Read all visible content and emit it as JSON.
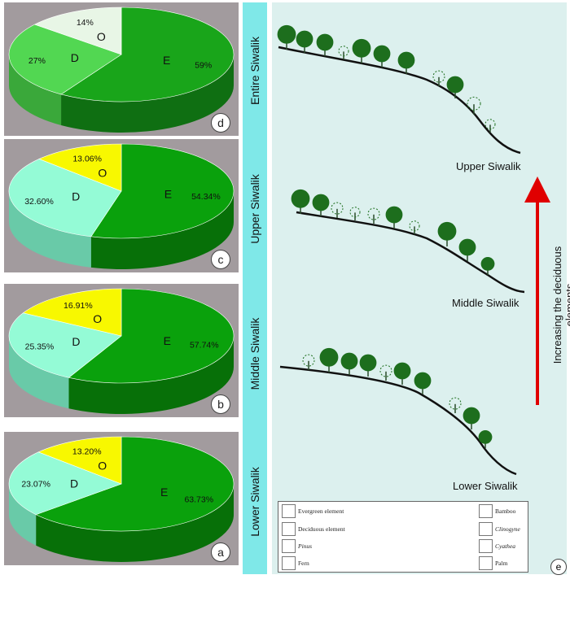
{
  "chart_data": [
    {
      "type": "pie",
      "panel": "d",
      "site": "Entire Siwalik",
      "slices": [
        {
          "code": "E",
          "pct": 59,
          "label": "59%",
          "color": "#19a51a",
          "side": "#0f6f12"
        },
        {
          "code": "D",
          "pct": 27,
          "label": "27%",
          "color": "#52d752",
          "side": "#3aa83a"
        },
        {
          "code": "O",
          "pct": 14,
          "label": "14%",
          "color": "#e8f6e6",
          "side": "#bcd0bb"
        }
      ]
    },
    {
      "type": "pie",
      "panel": "c",
      "site": "Upper Siwalik",
      "slices": [
        {
          "code": "E",
          "pct": 54.34,
          "label": "54.34%",
          "color": "#0aa10c",
          "side": "#077008"
        },
        {
          "code": "D",
          "pct": 32.6,
          "label": "32.60%",
          "color": "#94fbd6",
          "side": "#69caa8"
        },
        {
          "code": "O",
          "pct": 13.06,
          "label": "13.06%",
          "color": "#f8f800",
          "side": "#c9c700"
        }
      ]
    },
    {
      "type": "pie",
      "panel": "b",
      "site": "Middle Siwalik",
      "slices": [
        {
          "code": "E",
          "pct": 57.74,
          "label": "57.74%",
          "color": "#0aa10c",
          "side": "#077008"
        },
        {
          "code": "D",
          "pct": 25.35,
          "label": "25.35%",
          "color": "#94fbd6",
          "side": "#69caa8"
        },
        {
          "code": "O",
          "pct": 16.91,
          "label": "16.91%",
          "color": "#f8f800",
          "side": "#c9c700"
        }
      ]
    },
    {
      "type": "pie",
      "panel": "a",
      "site": "Lower Siwalik",
      "slices": [
        {
          "code": "E",
          "pct": 63.73,
          "label": "63.73%",
          "color": "#0aa10c",
          "side": "#077008"
        },
        {
          "code": "D",
          "pct": 23.07,
          "label": "23.07%",
          "color": "#94fbd6",
          "side": "#69caa8"
        },
        {
          "code": "O",
          "pct": 13.2,
          "label": "13.20%",
          "color": "#f8f800",
          "side": "#c9c700"
        }
      ]
    }
  ],
  "scenes": [
    "Upper Siwalik",
    "Middle Siwalik",
    "Lower Siwalik"
  ],
  "arrow_label": "Increasing the deciduous elements",
  "panel_e": "e",
  "legend": {
    "left": [
      "Evergreen element",
      "Deciduous element",
      "Pinus",
      "Fern"
    ],
    "right": [
      "Bamboo",
      "Clinogyne",
      "Cyathea",
      "Palm"
    ]
  },
  "colors": {
    "arrow": "#e00000",
    "strip": "#7fe8e8",
    "background": "#dcf0ee"
  }
}
